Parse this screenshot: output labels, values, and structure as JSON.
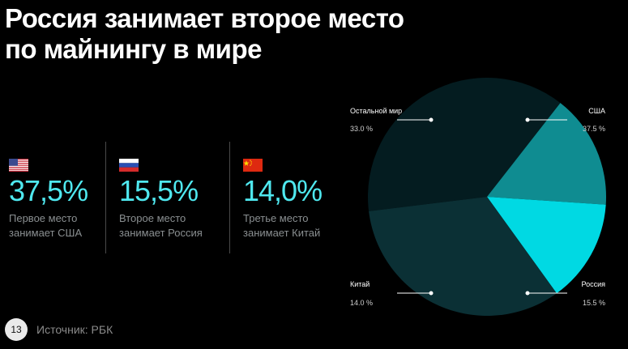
{
  "title": {
    "line1": "Россия занимает второе место",
    "line2": "по майнингу в мире"
  },
  "stats": [
    {
      "flag": "us-flag",
      "value": "37,5%",
      "caption_line1": "Первое место",
      "caption_line2": "занимает США"
    },
    {
      "flag": "russia-flag",
      "value": "15,5%",
      "caption_line1": "Второе место",
      "caption_line2": "занимает Россия"
    },
    {
      "flag": "china-flag",
      "value": "14,0%",
      "caption_line1": "Третье место",
      "caption_line2": "занимает Китай"
    }
  ],
  "footer": {
    "page_number": "13",
    "source": "Источник: РБК"
  },
  "colors": {
    "accent": "#4fe8ef",
    "usa": "#041c20",
    "russia": "#0f8c91",
    "china": "#00d9e3",
    "other": "#0b3035"
  },
  "chart_data": {
    "type": "pie",
    "title": "",
    "slices": [
      {
        "label": "США",
        "value": 37.5,
        "value_label": "37.5 %",
        "color": "#041c20"
      },
      {
        "label": "Россия",
        "value": 15.5,
        "value_label": "15.5 %",
        "color": "#0f8c91"
      },
      {
        "label": "Китай",
        "value": 14.0,
        "value_label": "14.0 %",
        "color": "#00d9e3"
      },
      {
        "label": "Остальной мир",
        "value": 33.0,
        "value_label": "33.0 %",
        "color": "#0b3035"
      }
    ]
  }
}
